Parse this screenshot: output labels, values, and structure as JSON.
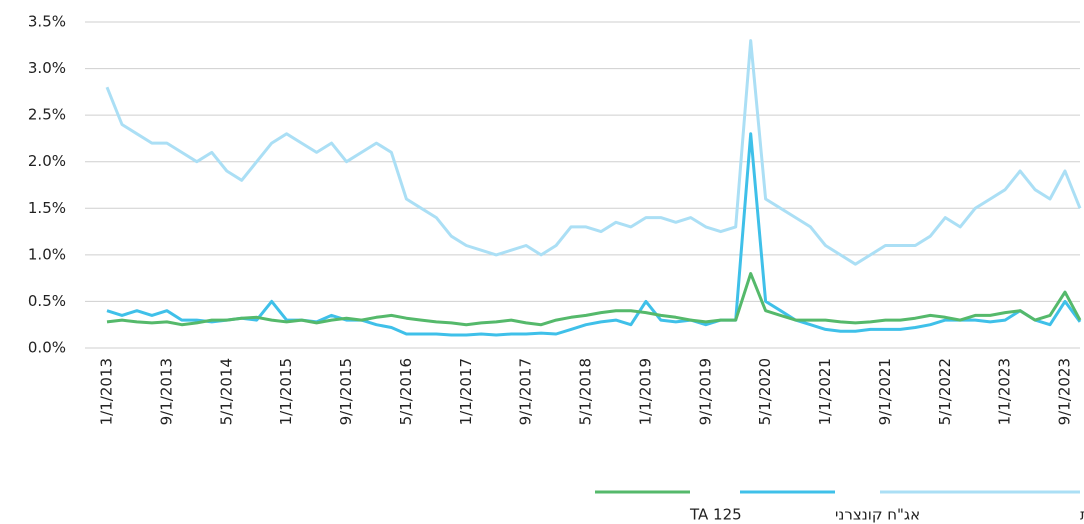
{
  "chart_data": {
    "type": "line",
    "categories": [
      "1/1/2013",
      null,
      null,
      null,
      "9/1/2013",
      null,
      null,
      null,
      "5/1/2014",
      null,
      null,
      null,
      "1/1/2015",
      null,
      null,
      null,
      "9/1/2015",
      null,
      null,
      null,
      "5/1/2016",
      null,
      null,
      null,
      "1/1/2017",
      null,
      null,
      null,
      "9/1/2017",
      null,
      null,
      null,
      "5/1/2018",
      null,
      null,
      null,
      "1/1/2019",
      null,
      null,
      null,
      "9/1/2019",
      null,
      null,
      null,
      "5/1/2020",
      null,
      null,
      null,
      "1/1/2021",
      null,
      null,
      null,
      "9/1/2021",
      null,
      null,
      null,
      "5/1/2022",
      null,
      null,
      null,
      "1/1/2023",
      null,
      null,
      null,
      "9/1/2023",
      null
    ],
    "series": [
      {
        "name": "מניות ויחידות השתתפות",
        "color": "#abdff5",
        "values": [
          2.8,
          2.4,
          2.3,
          2.2,
          2.2,
          2.1,
          2.0,
          2.1,
          1.9,
          1.8,
          2.0,
          2.2,
          2.3,
          2.2,
          2.1,
          2.2,
          2.0,
          2.1,
          2.2,
          2.1,
          1.6,
          1.5,
          1.4,
          1.2,
          1.1,
          1.05,
          1.0,
          1.05,
          1.1,
          1.0,
          1.1,
          1.3,
          1.3,
          1.25,
          1.35,
          1.3,
          1.4,
          1.4,
          1.35,
          1.4,
          1.3,
          1.25,
          1.3,
          3.3,
          1.6,
          1.5,
          1.4,
          1.3,
          1.1,
          1.0,
          0.9,
          1.0,
          1.1,
          1.1,
          1.1,
          1.2,
          1.4,
          1.3,
          1.5,
          1.6,
          1.7,
          1.9,
          1.7,
          1.6,
          1.9,
          1.5
        ]
      },
      {
        "name": "אג\"ח קונצרני",
        "color": "#3fc0e9",
        "values": [
          0.4,
          0.35,
          0.4,
          0.35,
          0.4,
          0.3,
          0.3,
          0.28,
          0.3,
          0.32,
          0.3,
          0.5,
          0.3,
          0.3,
          0.28,
          0.35,
          0.3,
          0.3,
          0.25,
          0.22,
          0.15,
          0.15,
          0.15,
          0.14,
          0.14,
          0.15,
          0.14,
          0.15,
          0.15,
          0.16,
          0.15,
          0.2,
          0.25,
          0.28,
          0.3,
          0.25,
          0.5,
          0.3,
          0.28,
          0.3,
          0.25,
          0.3,
          0.3,
          2.3,
          0.5,
          0.4,
          0.3,
          0.25,
          0.2,
          0.18,
          0.18,
          0.2,
          0.2,
          0.2,
          0.22,
          0.25,
          0.3,
          0.3,
          0.3,
          0.28,
          0.3,
          0.4,
          0.3,
          0.25,
          0.5,
          0.28
        ]
      },
      {
        "name": "TA 125",
        "color": "#55b96b",
        "values": [
          0.28,
          0.3,
          0.28,
          0.27,
          0.28,
          0.25,
          0.27,
          0.3,
          0.3,
          0.32,
          0.33,
          0.3,
          0.28,
          0.3,
          0.27,
          0.3,
          0.32,
          0.3,
          0.33,
          0.35,
          0.32,
          0.3,
          0.28,
          0.27,
          0.25,
          0.27,
          0.28,
          0.3,
          0.27,
          0.25,
          0.3,
          0.33,
          0.35,
          0.38,
          0.4,
          0.4,
          0.38,
          0.35,
          0.33,
          0.3,
          0.28,
          0.3,
          0.3,
          0.8,
          0.4,
          0.35,
          0.3,
          0.3,
          0.3,
          0.28,
          0.27,
          0.28,
          0.3,
          0.3,
          0.32,
          0.35,
          0.33,
          0.3,
          0.35,
          0.35,
          0.38,
          0.4,
          0.3,
          0.35,
          0.6,
          0.3
        ]
      }
    ],
    "ylim": [
      0,
      3.5
    ],
    "yticks": [
      {
        "value": 0,
        "label": "0.0%"
      },
      {
        "value": 0.5,
        "label": "0.5%"
      },
      {
        "value": 1,
        "label": "1.0%"
      },
      {
        "value": 1.5,
        "label": "1.5%"
      },
      {
        "value": 2,
        "label": "2.0%"
      },
      {
        "value": 2.5,
        "label": "2.5%"
      },
      {
        "value": 3,
        "label": "3.0%"
      },
      {
        "value": 3.5,
        "label": "3.5%"
      }
    ],
    "grid": true
  }
}
